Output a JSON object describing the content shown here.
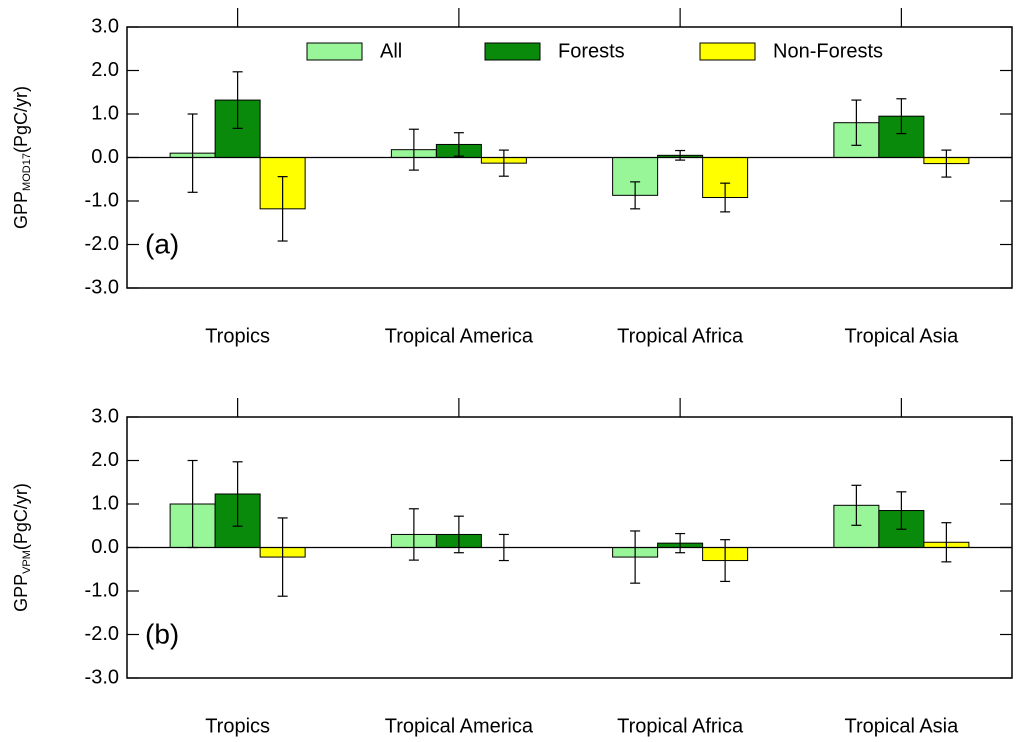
{
  "chart_data": [
    {
      "type": "bar",
      "panel_label": "(a)",
      "ylabel": {
        "main": "GPP",
        "sub": "MOD17",
        "unit": "(PgC/yr)"
      },
      "categories": [
        "Tropics",
        "Tropical America",
        "Tropical Africa",
        "Tropical Asia"
      ],
      "series": [
        {
          "name": "All",
          "color": "#98f598",
          "values": [
            0.1,
            0.18,
            -0.87,
            0.8
          ],
          "errors": [
            0.9,
            0.47,
            0.31,
            0.52
          ]
        },
        {
          "name": "Forests",
          "color": "#0a8a0a",
          "values": [
            1.32,
            0.3,
            0.05,
            0.95
          ],
          "errors": [
            0.65,
            0.27,
            0.11,
            0.4
          ]
        },
        {
          "name": "Non-Forests",
          "color": "#ffff00",
          "values": [
            -1.18,
            -0.13,
            -0.92,
            -0.14
          ],
          "errors": [
            0.74,
            0.3,
            0.33,
            0.31
          ]
        }
      ],
      "legend": true,
      "ylim": [
        -3,
        3
      ],
      "yticks": [
        {
          "value": -3,
          "label": "-3.0"
        },
        {
          "value": -2,
          "label": "-2.0"
        },
        {
          "value": -1,
          "label": "-1.0"
        },
        {
          "value": 0,
          "label": "0.0"
        },
        {
          "value": 1,
          "label": "1.0"
        },
        {
          "value": 2,
          "label": "2.0"
        },
        {
          "value": 3,
          "label": "3.0"
        }
      ]
    },
    {
      "type": "bar",
      "panel_label": "(b)",
      "ylabel": {
        "main": "GPP",
        "sub": "VPM",
        "unit": "(PgC/yr)"
      },
      "categories": [
        "Tropics",
        "Tropical America",
        "Tropical Africa",
        "Tropical Asia"
      ],
      "series": [
        {
          "color": "#98f598",
          "values": [
            1.0,
            0.3,
            -0.22,
            0.97
          ],
          "errors": [
            1.0,
            0.59,
            0.6,
            0.46
          ]
        },
        {
          "color": "#0a8a0a",
          "values": [
            1.23,
            0.3,
            0.1,
            0.85
          ],
          "errors": [
            0.74,
            0.42,
            0.22,
            0.43
          ]
        },
        {
          "color": "#ffff00",
          "values": [
            -0.22,
            0.0,
            -0.3,
            0.12
          ],
          "errors": [
            0.9,
            0.3,
            0.48,
            0.45
          ]
        }
      ],
      "legend": false,
      "ylim": [
        -3,
        3
      ],
      "yticks": [
        {
          "value": -3,
          "label": "-3.0"
        },
        {
          "value": -2,
          "label": "-2.0"
        },
        {
          "value": -1,
          "label": "-1.0"
        },
        {
          "value": 0,
          "label": "0.0"
        },
        {
          "value": 1,
          "label": "1.0"
        },
        {
          "value": 2,
          "label": "2.0"
        },
        {
          "value": 3,
          "label": "3.0"
        }
      ]
    }
  ]
}
